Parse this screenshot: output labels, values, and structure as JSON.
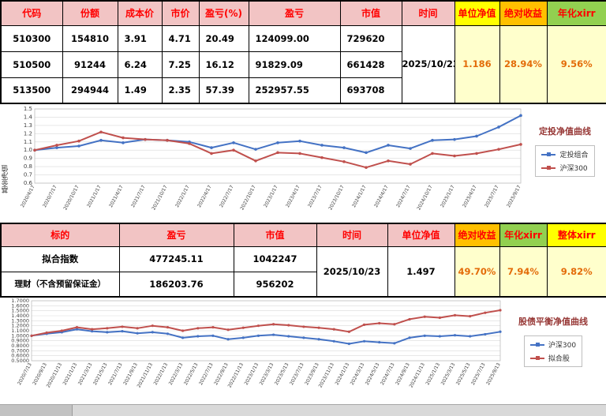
{
  "table1": {
    "headers": [
      "代码",
      "份额",
      "成本价",
      "市价",
      "盈亏(%)",
      "盈亏",
      "市值",
      "时间",
      "单位净值",
      "绝对收益",
      "年化xirr"
    ],
    "rows": [
      {
        "code": "510300",
        "shares": "154810",
        "cost": "3.91",
        "price": "4.71",
        "pl_pct": "20.49",
        "pl": "124099.00",
        "mv": "729620"
      },
      {
        "code": "510500",
        "shares": "91244",
        "cost": "6.24",
        "price": "7.25",
        "pl_pct": "16.12",
        "pl": "91829.09",
        "mv": "661428"
      },
      {
        "code": "513500",
        "shares": "294944",
        "cost": "1.49",
        "price": "2.35",
        "pl_pct": "57.39",
        "pl": "252957.55",
        "mv": "693708"
      }
    ],
    "time": "2025/10/23",
    "unit_nav": "1.186",
    "abs_return": "28.94%",
    "xirr": "9.56%"
  },
  "table2": {
    "headers": [
      "标的",
      "盈亏",
      "市值",
      "时间",
      "单位净值",
      "绝对收益",
      "年化xirr",
      "整体xirr"
    ],
    "rows": [
      {
        "name": "拟合指数",
        "pl": "477245.11",
        "mv": "1042247"
      },
      {
        "name": "理财（不含预留保证金）",
        "pl": "186203.76",
        "mv": "956202"
      }
    ],
    "time": "2025/10/23",
    "unit_nav": "1.497",
    "abs_return": "49.70%",
    "xirr": "7.94%",
    "overall_xirr": "9.82%"
  },
  "chart_data": [
    {
      "type": "line",
      "title": "定投净值曲线",
      "ylabel": "基金净值",
      "ylim": [
        0.6,
        1.5
      ],
      "ystep": 0.1,
      "ydecimals": 1,
      "legend_position": "right",
      "grid": true,
      "categories": [
        "2020/4/17",
        "2020/7/17",
        "2020/10/17",
        "2021/1/17",
        "2021/4/17",
        "2021/7/17",
        "2021/10/17",
        "2022/1/17",
        "2022/4/17",
        "2022/7/17",
        "2022/10/17",
        "2023/1/17",
        "2023/4/17",
        "2023/7/17",
        "2023/10/17",
        "2024/1/17",
        "2024/4/17",
        "2024/7/17",
        "2024/10/17",
        "2025/1/17",
        "2025/4/17",
        "2025/7/17",
        "2025/9/17"
      ],
      "series": [
        {
          "name": "定投组合",
          "color": "#4472c4",
          "values": [
            1.0,
            1.03,
            1.05,
            1.12,
            1.09,
            1.13,
            1.12,
            1.1,
            1.03,
            1.09,
            1.01,
            1.09,
            1.11,
            1.06,
            1.03,
            0.97,
            1.06,
            1.02,
            1.12,
            1.13,
            1.17,
            1.28,
            1.42
          ]
        },
        {
          "name": "沪深300",
          "color": "#c0504d",
          "values": [
            1.0,
            1.06,
            1.11,
            1.22,
            1.15,
            1.13,
            1.12,
            1.08,
            0.96,
            1.0,
            0.87,
            0.97,
            0.96,
            0.91,
            0.86,
            0.79,
            0.87,
            0.83,
            0.96,
            0.93,
            0.96,
            1.01,
            1.07
          ]
        }
      ]
    },
    {
      "type": "line",
      "title": "股债平衡净值曲线",
      "ylabel": "",
      "ylim": [
        0.5,
        1.7
      ],
      "ystep": 0.1,
      "ydecimals": 4,
      "legend_position": "right",
      "grid": true,
      "categories": [
        "2020/7/13",
        "2020/9/13",
        "2020/11/13",
        "2021/1/13",
        "2021/3/13",
        "2021/5/13",
        "2021/7/13",
        "2021/9/13",
        "2021/11/13",
        "2022/1/13",
        "2022/3/13",
        "2022/5/13",
        "2022/7/13",
        "2022/9/13",
        "2022/11/13",
        "2023/1/13",
        "2023/3/13",
        "2023/5/13",
        "2023/7/13",
        "2023/9/13",
        "2023/11/13",
        "2024/1/13",
        "2024/3/13",
        "2024/5/13",
        "2024/7/13",
        "2024/9/13",
        "2024/11/13",
        "2025/1/13",
        "2025/3/13",
        "2025/5/13",
        "2025/7/13",
        "2025/9/13"
      ],
      "series": [
        {
          "name": "沪深300",
          "color": "#4472c4",
          "values": [
            1.0,
            1.04,
            1.07,
            1.13,
            1.09,
            1.07,
            1.09,
            1.05,
            1.07,
            1.04,
            0.96,
            0.99,
            1.0,
            0.93,
            0.96,
            1.0,
            1.02,
            0.99,
            0.96,
            0.93,
            0.89,
            0.84,
            0.89,
            0.87,
            0.85,
            0.96,
            1.0,
            0.99,
            1.01,
            0.99,
            1.03,
            1.08
          ]
        },
        {
          "name": "拟合股",
          "color": "#c0504d",
          "values": [
            1.0,
            1.06,
            1.1,
            1.17,
            1.13,
            1.15,
            1.18,
            1.15,
            1.2,
            1.17,
            1.1,
            1.15,
            1.17,
            1.12,
            1.16,
            1.2,
            1.23,
            1.21,
            1.18,
            1.16,
            1.13,
            1.08,
            1.22,
            1.25,
            1.23,
            1.33,
            1.38,
            1.36,
            1.41,
            1.39,
            1.46,
            1.51
          ]
        }
      ]
    }
  ]
}
